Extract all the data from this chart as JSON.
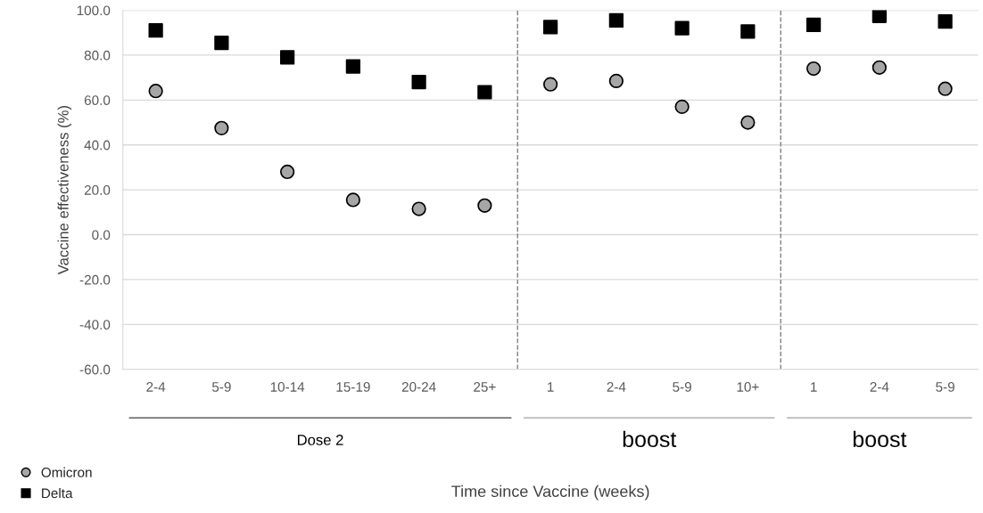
{
  "chart_data": {
    "type": "scatter",
    "ylabel": "Vaccine effectiveness (%)",
    "categories": [
      "2-4",
      "5-9",
      "10-14",
      "15-19",
      "20-24",
      "25+",
      "1",
      "2-4",
      "5-9",
      "10+",
      "1",
      "2-4",
      "5-9"
    ],
    "ylim": [
      -60,
      100
    ],
    "yticks": [
      {
        "value": -60,
        "label": "-60.0"
      },
      {
        "value": -40,
        "label": "-40.0"
      },
      {
        "value": -20,
        "label": "-20.0"
      },
      {
        "value": 0,
        "label": "0.0"
      },
      {
        "value": 20,
        "label": "20.0"
      },
      {
        "value": 40,
        "label": "40.0"
      },
      {
        "value": 60,
        "label": "60.0"
      },
      {
        "value": 80,
        "label": "80.0"
      },
      {
        "value": 100,
        "label": "100.0"
      }
    ],
    "series": [
      {
        "name": "Omicron",
        "color": "#a6a6a6",
        "marker": "circle",
        "values": [
          64,
          47.5,
          28,
          15.5,
          11.5,
          13,
          67,
          68.5,
          57,
          50,
          74,
          74.5,
          65
        ]
      },
      {
        "name": "Delta",
        "color": "#000000",
        "marker": "square",
        "values": [
          91,
          85.5,
          79,
          75,
          68,
          63.5,
          92.5,
          95.5,
          92,
          90.5,
          93.5,
          97.5,
          95
        ]
      }
    ],
    "annotations": [
      "Dose 2",
      "boost",
      "boost",
      "Time since Vaccine (weeks)"
    ],
    "grid": "y",
    "legend": "bottom left"
  }
}
